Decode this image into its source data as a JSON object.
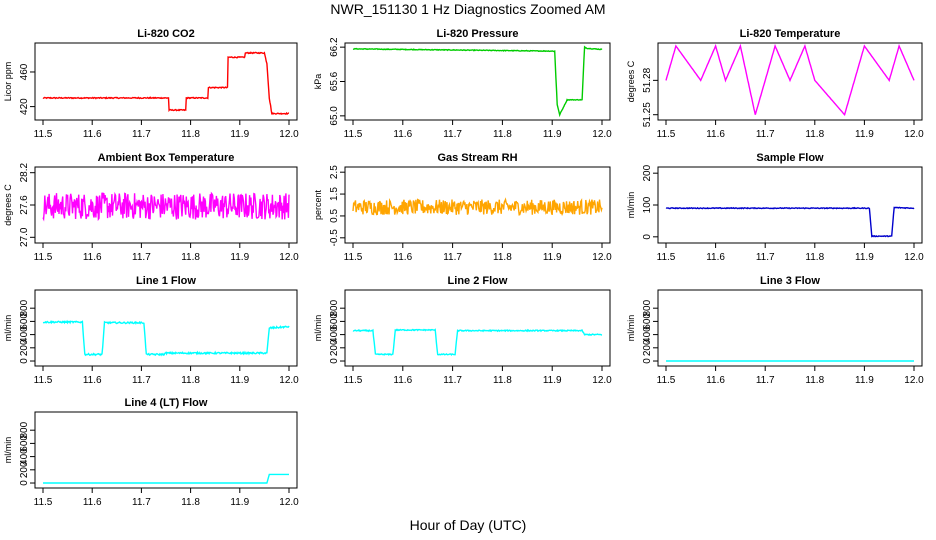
{
  "title": "NWR_151130  1 Hz Diagnostics Zoomed AM",
  "xlabel": "Hour of Day (UTC)",
  "chart_data": [
    {
      "type": "line",
      "title": "Li-820 CO2",
      "ylabel": "Licor ppm",
      "color": "#ff0000",
      "xlim": [
        11.5,
        12.0
      ],
      "ylim": [
        408,
        490
      ],
      "yticks": [
        "420",
        "460"
      ],
      "xticks": [
        "11.5",
        "11.6",
        "11.7",
        "11.8",
        "11.9",
        "12.0"
      ],
      "noise": 0.6,
      "x": [
        11.5,
        11.755,
        11.755,
        11.79,
        11.79,
        11.835,
        11.835,
        11.875,
        11.875,
        11.91,
        11.91,
        11.95,
        11.955,
        11.96,
        11.965,
        12.0
      ],
      "y": [
        430,
        430,
        416,
        416,
        430,
        430,
        442,
        442,
        477,
        477,
        482,
        482,
        470,
        430,
        412,
        412
      ]
    },
    {
      "type": "line",
      "title": "Li-820 Pressure",
      "ylabel": "kPa",
      "color": "#00cc00",
      "xlim": [
        11.5,
        12.0
      ],
      "ylim": [
        64.98,
        66.22
      ],
      "yticks": [
        "65.0",
        "65.6",
        "66.2"
      ],
      "xticks": [
        "11.5",
        "11.6",
        "11.7",
        "11.8",
        "11.9",
        "12.0"
      ],
      "noise": 0.006,
      "x": [
        11.5,
        11.905,
        11.91,
        11.915,
        11.93,
        11.96,
        11.965,
        11.97,
        12.0
      ],
      "y": [
        66.17,
        66.13,
        65.2,
        65.02,
        65.28,
        65.28,
        66.2,
        66.18,
        66.16
      ]
    },
    {
      "type": "line",
      "title": "Li-820 Temperature",
      "ylabel": "degrees C",
      "color": "#ff00ff",
      "xlim": [
        11.5,
        12.0
      ],
      "ylim": [
        51.248,
        51.31
      ],
      "yticks": [
        "51.25",
        "51.28"
      ],
      "xticks": [
        "11.5",
        "11.6",
        "11.7",
        "11.8",
        "11.9",
        "12.0"
      ],
      "noise": 0,
      "x": [
        11.5,
        11.52,
        11.57,
        11.6,
        11.62,
        11.65,
        11.68,
        11.72,
        11.75,
        11.78,
        11.8,
        11.86,
        11.9,
        11.95,
        11.97,
        12.0
      ],
      "y": [
        51.28,
        51.31,
        51.28,
        51.31,
        51.28,
        51.31,
        51.25,
        51.31,
        51.28,
        51.31,
        51.28,
        51.25,
        51.31,
        51.28,
        51.31,
        51.28
      ]
    },
    {
      "type": "line",
      "title": "Ambient Box Temperature",
      "ylabel": "degrees C",
      "color": "#ff00ff",
      "xlim": [
        11.5,
        12.0
      ],
      "ylim": [
        26.95,
        28.25
      ],
      "yticks": [
        "27.0",
        "27.6",
        "28.2"
      ],
      "xticks": [
        "11.5",
        "11.6",
        "11.7",
        "11.8",
        "11.9",
        "12.0"
      ],
      "noise": 0.25,
      "x": [
        11.5,
        12.0
      ],
      "y": [
        27.58,
        27.58
      ]
    },
    {
      "type": "line",
      "title": "Gas Stream RH",
      "ylabel": "percent",
      "color": "#ffa500",
      "xlim": [
        11.5,
        12.0
      ],
      "ylim": [
        -0.6,
        2.6
      ],
      "yticks": [
        "-0.5",
        "0.5",
        "1.5",
        "2.5"
      ],
      "xticks": [
        "11.5",
        "11.6",
        "11.7",
        "11.8",
        "11.9",
        "12.0"
      ],
      "noise": 0.35,
      "x": [
        11.5,
        12.0
      ],
      "y": [
        0.9,
        0.9
      ]
    },
    {
      "type": "line",
      "title": "Sample Flow",
      "ylabel": "ml/min",
      "color": "#0000cc",
      "xlim": [
        11.5,
        12.0
      ],
      "ylim": [
        -10,
        210
      ],
      "yticks": [
        "0",
        "100",
        "200"
      ],
      "xticks": [
        "11.5",
        "11.6",
        "11.7",
        "11.8",
        "11.9",
        "12.0"
      ],
      "noise": 1.2,
      "x": [
        11.5,
        11.91,
        11.915,
        11.955,
        11.96,
        12.0
      ],
      "y": [
        90,
        90,
        2,
        2,
        92,
        90
      ]
    },
    {
      "type": "line",
      "title": "Line 1 Flow",
      "ylabel": "ml/min",
      "color": "#00ffff",
      "xlim": [
        11.5,
        12.0
      ],
      "ylim": [
        -30,
        1030
      ],
      "yticks": [
        "0",
        "200",
        "400",
        "600",
        "800"
      ],
      "xticks": [
        "11.5",
        "11.6",
        "11.7",
        "11.8",
        "11.9",
        "12.0"
      ],
      "noise": 12,
      "x": [
        11.5,
        11.58,
        11.585,
        11.62,
        11.625,
        11.705,
        11.71,
        11.745,
        11.75,
        11.955,
        11.96,
        12.0
      ],
      "y": [
        590,
        590,
        100,
        100,
        580,
        580,
        100,
        100,
        120,
        120,
        500,
        520
      ]
    },
    {
      "type": "line",
      "title": "Line 2 Flow",
      "ylabel": "ml/min",
      "color": "#00ffff",
      "xlim": [
        11.5,
        12.0
      ],
      "ylim": [
        -30,
        1030
      ],
      "yticks": [
        "0",
        "200",
        "400",
        "600",
        "800"
      ],
      "xticks": [
        "11.5",
        "11.6",
        "11.7",
        "11.8",
        "11.9",
        "12.0"
      ],
      "noise": 8,
      "x": [
        11.5,
        11.54,
        11.545,
        11.58,
        11.585,
        11.665,
        11.67,
        11.705,
        11.71,
        11.96,
        11.965,
        12.0
      ],
      "y": [
        460,
        460,
        100,
        100,
        470,
        470,
        100,
        100,
        460,
        460,
        400,
        400
      ]
    },
    {
      "type": "line",
      "title": "Line 3 Flow",
      "ylabel": "ml/min",
      "color": "#00ffff",
      "xlim": [
        11.5,
        12.0
      ],
      "ylim": [
        -30,
        1030
      ],
      "yticks": [
        "0",
        "200",
        "400",
        "600",
        "800"
      ],
      "xticks": [
        "11.5",
        "11.6",
        "11.7",
        "11.8",
        "11.9",
        "12.0"
      ],
      "noise": 0,
      "x": [
        11.5,
        12.0
      ],
      "y": [
        0,
        0
      ]
    },
    {
      "type": "line",
      "title": "Line 4 (LT) Flow",
      "ylabel": "ml/min",
      "color": "#00ffff",
      "xlim": [
        11.5,
        12.0
      ],
      "ylim": [
        -30,
        1030
      ],
      "yticks": [
        "0",
        "200",
        "400",
        "600",
        "800"
      ],
      "xticks": [
        "11.5",
        "11.6",
        "11.7",
        "11.8",
        "11.9",
        "12.0"
      ],
      "noise": 0,
      "x": [
        11.5,
        11.955,
        11.96,
        12.0
      ],
      "y": [
        0,
        0,
        130,
        130
      ]
    }
  ]
}
